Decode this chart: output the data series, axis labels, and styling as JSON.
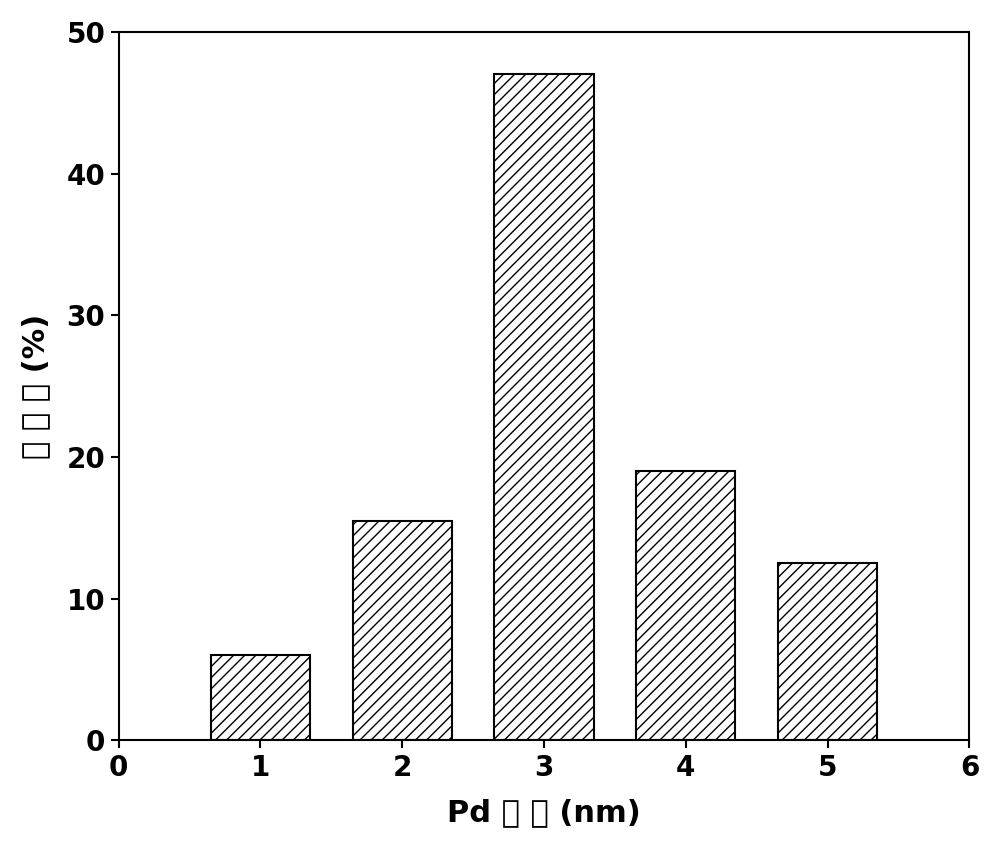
{
  "categories": [
    1,
    2,
    3,
    4,
    5
  ],
  "values": [
    6.0,
    15.5,
    47.0,
    19.0,
    12.5
  ],
  "bar_width": 0.7,
  "bar_color": "white",
  "bar_edgecolor": "#000000",
  "hatch": "///",
  "xlabel_parts": [
    "Pd ",
    "粒 ",
    "径 ",
    "(nm)"
  ],
  "ylabel_parts": [
    "百 ",
    "分 ",
    "比 ",
    "(%)"
  ],
  "xlabel_cn": "Pd 粒 径 (nm)",
  "ylabel_cn": "百 分 比 (%)",
  "xlim": [
    0,
    6
  ],
  "ylim": [
    0,
    50
  ],
  "xticks": [
    0,
    1,
    2,
    3,
    4,
    5,
    6
  ],
  "yticks": [
    0,
    10,
    20,
    30,
    40,
    50
  ],
  "xlabel_fontsize": 22,
  "ylabel_fontsize": 22,
  "tick_fontsize": 20,
  "background_color": "#ffffff",
  "linewidth": 1.5
}
